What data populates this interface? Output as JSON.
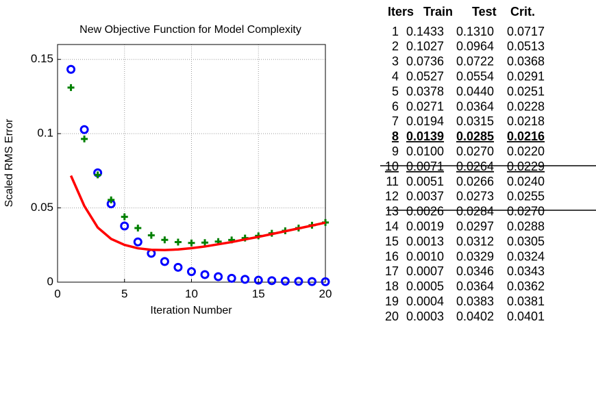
{
  "chart_data": {
    "type": "scatter",
    "title": "New Objective Function for Model Complexity",
    "xlabel": "Iteration Number",
    "ylabel": "Scaled RMS Error",
    "x": [
      1,
      2,
      3,
      4,
      5,
      6,
      7,
      8,
      9,
      10,
      11,
      12,
      13,
      14,
      15,
      16,
      17,
      18,
      19,
      20
    ],
    "series": [
      {
        "color": "#0000ff",
        "marker": "circle",
        "values": [
          0.1433,
          0.1027,
          0.0736,
          0.0527,
          0.0378,
          0.0271,
          0.0194,
          0.0139,
          0.01,
          0.0071,
          0.0051,
          0.0037,
          0.0026,
          0.0019,
          0.0013,
          0.001,
          0.0007,
          0.0005,
          0.0004,
          0.0003
        ]
      },
      {
        "color": "#008000",
        "marker": "plus",
        "values": [
          0.131,
          0.0964,
          0.0722,
          0.0554,
          0.044,
          0.0364,
          0.0315,
          0.0285,
          0.027,
          0.0264,
          0.0266,
          0.0273,
          0.0284,
          0.0297,
          0.0312,
          0.0329,
          0.0346,
          0.0364,
          0.0383,
          0.0402
        ]
      },
      {
        "color": "#ff0000",
        "marker": "line",
        "values": [
          0.0717,
          0.0513,
          0.0368,
          0.0291,
          0.0251,
          0.0228,
          0.0218,
          0.0216,
          0.022,
          0.0229,
          0.024,
          0.0255,
          0.027,
          0.0288,
          0.0305,
          0.0324,
          0.0343,
          0.0362,
          0.0381,
          0.0401
        ]
      }
    ],
    "xlim": [
      0,
      20
    ],
    "xticks": [
      0,
      5,
      10,
      15,
      20
    ],
    "ylim": [
      0,
      0.16
    ],
    "yticks": [
      0,
      0.05,
      0.1,
      0.15
    ],
    "grid": true
  },
  "table": {
    "header": [
      "Iters",
      "Train",
      "Test",
      "Crit."
    ],
    "rows": [
      [
        "1",
        "0.1433",
        "0.1310",
        "0.0717"
      ],
      [
        "2",
        "0.1027",
        "0.0964",
        "0.0513"
      ],
      [
        "3",
        "0.0736",
        "0.0722",
        "0.0368"
      ],
      [
        "4",
        "0.0527",
        "0.0554",
        "0.0291"
      ],
      [
        "5",
        "0.0378",
        "0.0440",
        "0.0251"
      ],
      [
        "6",
        "0.0271",
        "0.0364",
        "0.0228"
      ],
      [
        "7",
        "0.0194",
        "0.0315",
        "0.0218"
      ],
      [
        "8",
        "0.0139",
        "0.0285",
        "0.0216"
      ],
      [
        "9",
        "0.0100",
        "0.0270",
        "0.0220"
      ],
      [
        "10",
        "0.0071",
        "0.0264",
        "0.0229"
      ],
      [
        "11",
        "0.0051",
        "0.0266",
        "0.0240"
      ],
      [
        "12",
        "0.0037",
        "0.0273",
        "0.0255"
      ],
      [
        "13",
        "0.0026",
        "0.0284",
        "0.0270"
      ],
      [
        "14",
        "0.0019",
        "0.0297",
        "0.0288"
      ],
      [
        "15",
        "0.0013",
        "0.0312",
        "0.0305"
      ],
      [
        "16",
        "0.0010",
        "0.0329",
        "0.0324"
      ],
      [
        "17",
        "0.0007",
        "0.0346",
        "0.0343"
      ],
      [
        "18",
        "0.0005",
        "0.0364",
        "0.0362"
      ],
      [
        "19",
        "0.0004",
        "0.0383",
        "0.0381"
      ],
      [
        "20",
        "0.0003",
        "0.0402",
        "0.0401"
      ]
    ]
  }
}
